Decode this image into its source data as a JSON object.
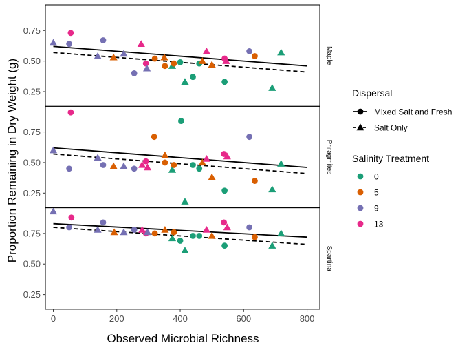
{
  "chart_data": {
    "type": "scatter",
    "ylabel": "Proportion Remaining in Dry Weight (g)",
    "xlabel": "Observed Microbial Richness",
    "xlim": [
      -25,
      840
    ],
    "x_ticks": [
      0,
      200,
      400,
      600,
      800
    ],
    "y_ticks": [
      0.25,
      0.5,
      0.75
    ],
    "grid": false,
    "facets": [
      {
        "name": "Maple",
        "ylim": [
          0.13,
          0.96
        ],
        "lines": {
          "mixed": [
            [
              0,
              0.62
            ],
            [
              800,
              0.46
            ]
          ],
          "salt": [
            [
              0,
              0.57
            ],
            [
              800,
              0.41
            ]
          ]
        },
        "points": [
          {
            "x": 0,
            "y": 0.65,
            "salinity": "9",
            "dispersal": "salt"
          },
          {
            "x": 50,
            "y": 0.64,
            "salinity": "9",
            "dispersal": "mixed"
          },
          {
            "x": 55,
            "y": 0.73,
            "salinity": "13",
            "dispersal": "mixed"
          },
          {
            "x": 140,
            "y": 0.54,
            "salinity": "9",
            "dispersal": "salt"
          },
          {
            "x": 157,
            "y": 0.67,
            "salinity": "9",
            "dispersal": "mixed"
          },
          {
            "x": 190,
            "y": 0.53,
            "salinity": "5",
            "dispersal": "salt"
          },
          {
            "x": 222,
            "y": 0.56,
            "salinity": "9",
            "dispersal": "salt"
          },
          {
            "x": 255,
            "y": 0.4,
            "salinity": "9",
            "dispersal": "mixed"
          },
          {
            "x": 277,
            "y": 0.64,
            "salinity": "13",
            "dispersal": "salt"
          },
          {
            "x": 292,
            "y": 0.48,
            "salinity": "13",
            "dispersal": "mixed"
          },
          {
            "x": 295,
            "y": 0.44,
            "salinity": "9",
            "dispersal": "salt"
          },
          {
            "x": 320,
            "y": 0.52,
            "salinity": "5",
            "dispersal": "mixed"
          },
          {
            "x": 350,
            "y": 0.53,
            "salinity": "5",
            "dispersal": "salt"
          },
          {
            "x": 352,
            "y": 0.46,
            "salinity": "5",
            "dispersal": "mixed"
          },
          {
            "x": 375,
            "y": 0.46,
            "salinity": "0",
            "dispersal": "salt"
          },
          {
            "x": 380,
            "y": 0.48,
            "salinity": "5",
            "dispersal": "mixed"
          },
          {
            "x": 400,
            "y": 0.49,
            "salinity": "0",
            "dispersal": "mixed"
          },
          {
            "x": 415,
            "y": 0.33,
            "salinity": "0",
            "dispersal": "salt"
          },
          {
            "x": 440,
            "y": 0.37,
            "salinity": "0",
            "dispersal": "mixed"
          },
          {
            "x": 460,
            "y": 0.48,
            "salinity": "0",
            "dispersal": "mixed"
          },
          {
            "x": 470,
            "y": 0.5,
            "salinity": "5",
            "dispersal": "salt"
          },
          {
            "x": 483,
            "y": 0.58,
            "salinity": "13",
            "dispersal": "salt"
          },
          {
            "x": 500,
            "y": 0.47,
            "salinity": "5",
            "dispersal": "salt"
          },
          {
            "x": 540,
            "y": 0.52,
            "salinity": "13",
            "dispersal": "mixed"
          },
          {
            "x": 540,
            "y": 0.33,
            "salinity": "0",
            "dispersal": "mixed"
          },
          {
            "x": 545,
            "y": 0.5,
            "salinity": "13",
            "dispersal": "salt"
          },
          {
            "x": 618,
            "y": 0.58,
            "salinity": "9",
            "dispersal": "mixed"
          },
          {
            "x": 635,
            "y": 0.54,
            "salinity": "5",
            "dispersal": "mixed"
          },
          {
            "x": 690,
            "y": 0.28,
            "salinity": "0",
            "dispersal": "salt"
          },
          {
            "x": 718,
            "y": 0.57,
            "salinity": "0",
            "dispersal": "salt"
          }
        ]
      },
      {
        "name": "Phragmites",
        "ylim": [
          0.13,
          0.96
        ],
        "lines": {
          "mixed": [
            [
              0,
              0.62
            ],
            [
              800,
              0.46
            ]
          ],
          "salt": [
            [
              0,
              0.57
            ],
            [
              800,
              0.41
            ]
          ]
        },
        "points": [
          {
            "x": 0,
            "y": 0.6,
            "salinity": "9",
            "dispersal": "salt"
          },
          {
            "x": 50,
            "y": 0.45,
            "salinity": "9",
            "dispersal": "mixed"
          },
          {
            "x": 55,
            "y": 0.91,
            "salinity": "13",
            "dispersal": "mixed"
          },
          {
            "x": 140,
            "y": 0.54,
            "salinity": "9",
            "dispersal": "salt"
          },
          {
            "x": 157,
            "y": 0.48,
            "salinity": "9",
            "dispersal": "mixed"
          },
          {
            "x": 190,
            "y": 0.47,
            "salinity": "5",
            "dispersal": "salt"
          },
          {
            "x": 222,
            "y": 0.47,
            "salinity": "9",
            "dispersal": "salt"
          },
          {
            "x": 255,
            "y": 0.45,
            "salinity": "9",
            "dispersal": "mixed"
          },
          {
            "x": 280,
            "y": 0.48,
            "salinity": "13",
            "dispersal": "salt"
          },
          {
            "x": 292,
            "y": 0.51,
            "salinity": "13",
            "dispersal": "mixed"
          },
          {
            "x": 297,
            "y": 0.46,
            "salinity": "13",
            "dispersal": "salt"
          },
          {
            "x": 318,
            "y": 0.71,
            "salinity": "5",
            "dispersal": "mixed"
          },
          {
            "x": 352,
            "y": 0.56,
            "salinity": "5",
            "dispersal": "salt"
          },
          {
            "x": 352,
            "y": 0.5,
            "salinity": "5",
            "dispersal": "mixed"
          },
          {
            "x": 375,
            "y": 0.44,
            "salinity": "0",
            "dispersal": "salt"
          },
          {
            "x": 380,
            "y": 0.48,
            "salinity": "5",
            "dispersal": "mixed"
          },
          {
            "x": 403,
            "y": 0.84,
            "salinity": "0",
            "dispersal": "mixed"
          },
          {
            "x": 415,
            "y": 0.18,
            "salinity": "0",
            "dispersal": "salt"
          },
          {
            "x": 440,
            "y": 0.48,
            "salinity": "0",
            "dispersal": "mixed"
          },
          {
            "x": 460,
            "y": 0.45,
            "salinity": "0",
            "dispersal": "mixed"
          },
          {
            "x": 470,
            "y": 0.5,
            "salinity": "5",
            "dispersal": "salt"
          },
          {
            "x": 483,
            "y": 0.53,
            "salinity": "13",
            "dispersal": "salt"
          },
          {
            "x": 500,
            "y": 0.38,
            "salinity": "5",
            "dispersal": "salt"
          },
          {
            "x": 538,
            "y": 0.57,
            "salinity": "13",
            "dispersal": "mixed"
          },
          {
            "x": 540,
            "y": 0.27,
            "salinity": "0",
            "dispersal": "mixed"
          },
          {
            "x": 548,
            "y": 0.55,
            "salinity": "13",
            "dispersal": "salt"
          },
          {
            "x": 618,
            "y": 0.71,
            "salinity": "9",
            "dispersal": "mixed"
          },
          {
            "x": 635,
            "y": 0.35,
            "salinity": "5",
            "dispersal": "mixed"
          },
          {
            "x": 690,
            "y": 0.28,
            "salinity": "0",
            "dispersal": "salt"
          },
          {
            "x": 718,
            "y": 0.49,
            "salinity": "0",
            "dispersal": "salt"
          }
        ]
      },
      {
        "name": "Spartina",
        "ylim": [
          0.13,
          0.96
        ],
        "lines": {
          "mixed": [
            [
              0,
              0.83
            ],
            [
              800,
              0.72
            ]
          ],
          "salt": [
            [
              0,
              0.8
            ],
            [
              800,
              0.66
            ]
          ]
        },
        "points": [
          {
            "x": 0,
            "y": 0.93,
            "salinity": "9",
            "dispersal": "salt"
          },
          {
            "x": 50,
            "y": 0.8,
            "salinity": "9",
            "dispersal": "mixed"
          },
          {
            "x": 57,
            "y": 0.88,
            "salinity": "13",
            "dispersal": "mixed"
          },
          {
            "x": 140,
            "y": 0.78,
            "salinity": "9",
            "dispersal": "salt"
          },
          {
            "x": 157,
            "y": 0.84,
            "salinity": "9",
            "dispersal": "mixed"
          },
          {
            "x": 192,
            "y": 0.76,
            "salinity": "5",
            "dispersal": "salt"
          },
          {
            "x": 222,
            "y": 0.76,
            "salinity": "9",
            "dispersal": "salt"
          },
          {
            "x": 255,
            "y": 0.78,
            "salinity": "9",
            "dispersal": "mixed"
          },
          {
            "x": 280,
            "y": 0.78,
            "salinity": "13",
            "dispersal": "salt"
          },
          {
            "x": 292,
            "y": 0.75,
            "salinity": "13",
            "dispersal": "mixed"
          },
          {
            "x": 297,
            "y": 0.76,
            "salinity": "9",
            "dispersal": "salt"
          },
          {
            "x": 320,
            "y": 0.75,
            "salinity": "5",
            "dispersal": "mixed"
          },
          {
            "x": 352,
            "y": 0.78,
            "salinity": "5",
            "dispersal": "salt"
          },
          {
            "x": 375,
            "y": 0.71,
            "salinity": "0",
            "dispersal": "salt"
          },
          {
            "x": 380,
            "y": 0.76,
            "salinity": "5",
            "dispersal": "mixed"
          },
          {
            "x": 400,
            "y": 0.69,
            "salinity": "0",
            "dispersal": "mixed"
          },
          {
            "x": 415,
            "y": 0.61,
            "salinity": "0",
            "dispersal": "salt"
          },
          {
            "x": 440,
            "y": 0.73,
            "salinity": "0",
            "dispersal": "mixed"
          },
          {
            "x": 460,
            "y": 0.73,
            "salinity": "0",
            "dispersal": "mixed"
          },
          {
            "x": 483,
            "y": 0.78,
            "salinity": "13",
            "dispersal": "salt"
          },
          {
            "x": 500,
            "y": 0.73,
            "salinity": "5",
            "dispersal": "salt"
          },
          {
            "x": 538,
            "y": 0.84,
            "salinity": "13",
            "dispersal": "mixed"
          },
          {
            "x": 540,
            "y": 0.65,
            "salinity": "0",
            "dispersal": "mixed"
          },
          {
            "x": 548,
            "y": 0.8,
            "salinity": "13",
            "dispersal": "salt"
          },
          {
            "x": 618,
            "y": 0.8,
            "salinity": "9",
            "dispersal": "mixed"
          },
          {
            "x": 635,
            "y": 0.72,
            "salinity": "5",
            "dispersal": "mixed"
          },
          {
            "x": 690,
            "y": 0.65,
            "salinity": "0",
            "dispersal": "salt"
          },
          {
            "x": 718,
            "y": 0.75,
            "salinity": "0",
            "dispersal": "salt"
          }
        ]
      }
    ],
    "legend": {
      "placement": "right",
      "dispersal": {
        "title": "Dispersal",
        "entries": [
          {
            "key": "mixed",
            "label": "Mixed Salt and Fresh",
            "shape": "circle",
            "line": "solid"
          },
          {
            "key": "salt",
            "label": "Salt Only",
            "shape": "triangle",
            "line": "dashed"
          }
        ]
      },
      "salinity": {
        "title": "Salinity Treatment",
        "entries": [
          {
            "key": "0",
            "label": "0",
            "color": "#1b9e77"
          },
          {
            "key": "5",
            "label": "5",
            "color": "#d95f02"
          },
          {
            "key": "9",
            "label": "9",
            "color": "#7570b3"
          },
          {
            "key": "13",
            "label": "13",
            "color": "#e7298a"
          }
        ]
      }
    }
  }
}
